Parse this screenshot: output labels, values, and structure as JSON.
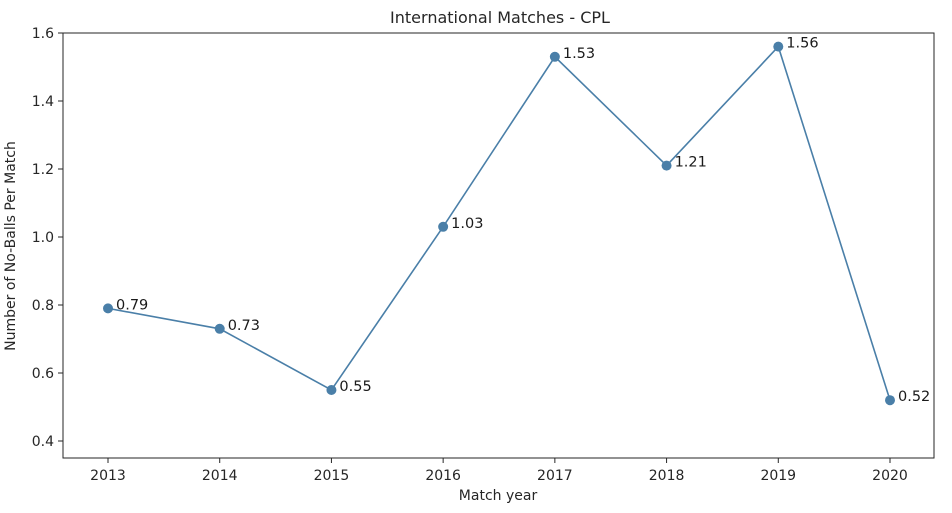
{
  "chart_data": {
    "type": "line",
    "title": "International Matches - CPL",
    "xlabel": "Match year",
    "ylabel": "Number of No-Balls Per Match",
    "categories": [
      "2013",
      "2014",
      "2015",
      "2016",
      "2017",
      "2018",
      "2019",
      "2020"
    ],
    "series": [
      {
        "name": "No-Balls Per Match",
        "values": [
          0.79,
          0.73,
          0.55,
          1.03,
          1.53,
          1.21,
          1.56,
          0.52
        ],
        "labels": [
          "0.79",
          "0.73",
          "0.55",
          "1.03",
          "1.53",
          "1.21",
          "1.56",
          "0.52"
        ],
        "color": "#4a7fa8"
      }
    ],
    "ylim": [
      0.35,
      1.6
    ],
    "yticks": [
      "0.4",
      "0.6",
      "0.8",
      "1.0",
      "1.2",
      "1.4",
      "1.6"
    ],
    "ytick_values": [
      0.4,
      0.6,
      0.8,
      1.0,
      1.2,
      1.4,
      1.6
    ],
    "grid": false,
    "marker": "circle"
  }
}
